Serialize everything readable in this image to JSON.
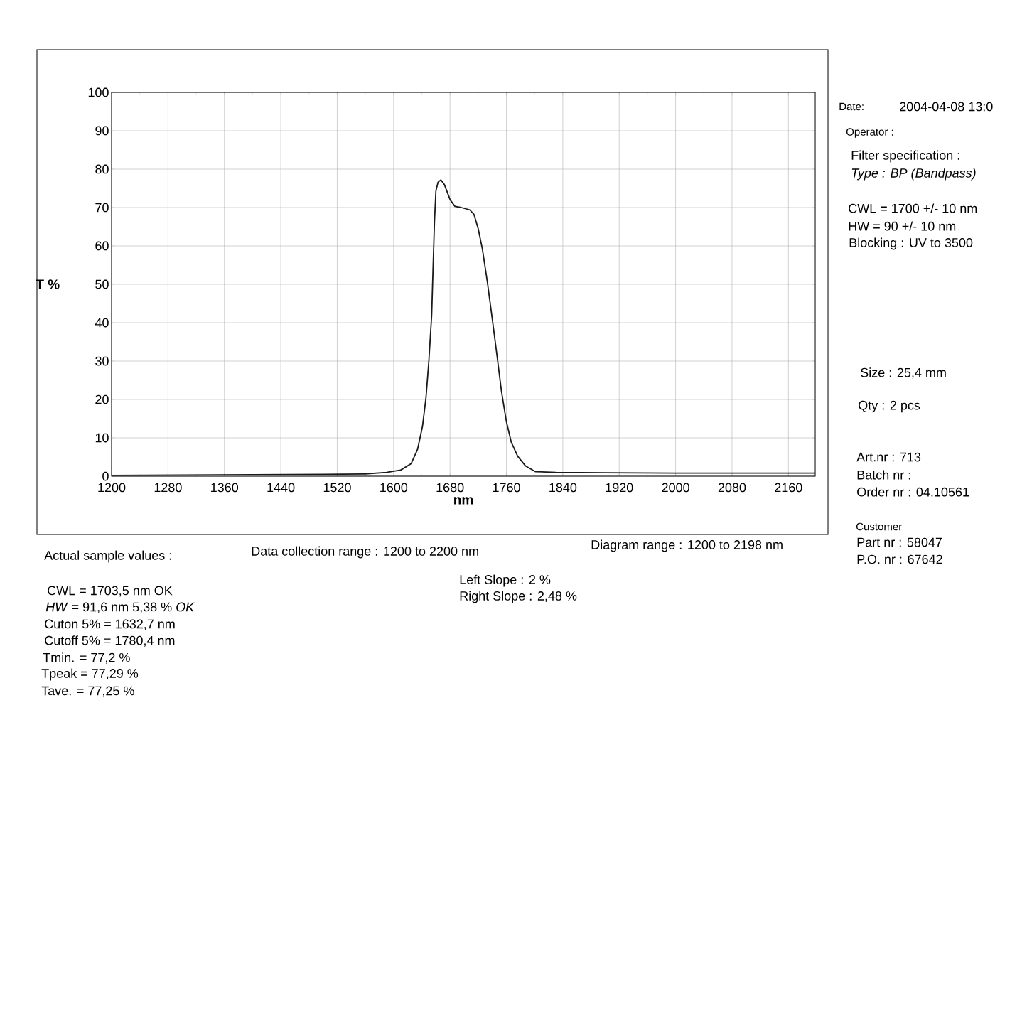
{
  "chart_data": {
    "type": "line",
    "xlabel": "nm",
    "ylabel": "T %",
    "x": [
      1200,
      1300,
      1400,
      1500,
      1560,
      1590,
      1610,
      1625,
      1634,
      1641,
      1646,
      1650,
      1654,
      1656,
      1658,
      1660,
      1663,
      1667,
      1672,
      1680,
      1687,
      1696,
      1708,
      1714,
      1720,
      1726,
      1733,
      1740,
      1746,
      1753,
      1760,
      1767,
      1776,
      1787,
      1801,
      1830,
      1900,
      2000,
      2100,
      2198
    ],
    "series": [
      {
        "color": "#1a1a1a",
        "values": [
          0.2,
          0.3,
          0.4,
          0.5,
          0.6,
          1.0,
          1.6,
          3.3,
          7,
          13,
          20.6,
          30,
          42,
          54.4,
          66.5,
          74.3,
          76.6,
          77.2,
          76,
          72.1,
          70.3,
          70,
          69.4,
          68.2,
          64.5,
          59.1,
          50.6,
          40.9,
          32.4,
          22.1,
          14.2,
          8.8,
          5.2,
          2.7,
          1.2,
          1.0,
          0.9,
          0.8,
          0.8,
          0.8
        ]
      }
    ],
    "xlim": [
      1200,
      2198
    ],
    "ylim": [
      0,
      100
    ],
    "xticks": [
      1200,
      1280,
      1360,
      1440,
      1520,
      1600,
      1680,
      1760,
      1840,
      1920,
      2000,
      2080,
      2160
    ],
    "yticks": [
      0,
      10,
      20,
      30,
      40,
      50,
      60,
      70,
      80,
      90,
      100
    ],
    "grid": true,
    "annotations": [
      "Date:",
      "2004-04-08 13:0",
      "Operator :",
      "Filter specification :",
      "*Type : BP (Bandpass)*",
      "CWL = 1700 +/- 10 nm",
      "HW = 90 +/- 10 nm",
      "Blocking : UV to 3500",
      "Size : 25,4 mm",
      "Qty : 2 pcs",
      "Art.nr : 713",
      "Batch nr :",
      "Order nr : 04.10561",
      "Customer",
      "Part nr : 58047",
      "P.O. nr : 67642",
      "Actual sample values :",
      "Data collection range : 1200 to 2200 nm",
      "Diagram range : 1200 to 2198 nm",
      "Left Slope : 2 %",
      "Right Slope : 2,48 %",
      "CWL = 1703,5 nm OK",
      "*HW* = 91,6 nm 5,38 % *OK*",
      "Cuton 5% = 1632,7 nm",
      "Cutoff 5% = 1780,4 nm",
      "Tmin. = 77,2 %",
      "Tpeak = 77,29 %",
      "Tave. = 77,25 %"
    ]
  }
}
